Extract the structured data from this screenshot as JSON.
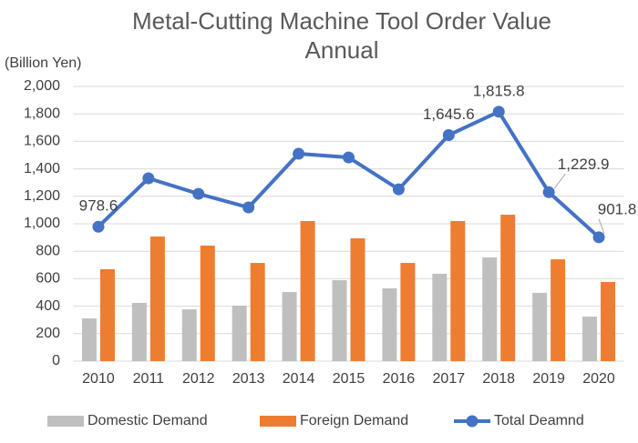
{
  "chart_data": {
    "type": "combo",
    "title": [
      "Metal-Cutting Machine Tool Order Value",
      "Annual"
    ],
    "y_label": "(Billion Yen)",
    "categories": [
      "2010",
      "2011",
      "2012",
      "2013",
      "2014",
      "2015",
      "2016",
      "2017",
      "2018",
      "2019",
      "2020"
    ],
    "series": [
      {
        "name": "Domestic Demand",
        "type": "bar",
        "color": "#bfbfbf",
        "values": [
          311,
          424,
          377,
          404,
          503,
          589,
          530,
          636,
          755,
          497,
          324
        ]
      },
      {
        "name": "Foreign Demand",
        "type": "bar",
        "color": "#ed7d31",
        "values": [
          669,
          907,
          841,
          715,
          1020,
          894,
          715,
          1020,
          1066,
          741,
          576
        ]
      },
      {
        "name": "Total Deamnd",
        "type": "line",
        "color": "#4472c4",
        "values": [
          978.6,
          1331,
          1218,
          1119,
          1510,
          1483,
          1251,
          1645.6,
          1815.8,
          1229.9,
          901.8
        ],
        "value_labels": [
          "978.6",
          null,
          null,
          null,
          null,
          null,
          null,
          "1,645.6",
          "1,815.8",
          "1,229.9",
          "901.8"
        ]
      }
    ],
    "ylim": [
      0,
      2000
    ],
    "yticks": [
      0,
      200,
      400,
      600,
      800,
      {
        "value": 1000,
        "label": "1,000"
      },
      {
        "value": 1200,
        "label": "1,200"
      },
      {
        "value": 1400,
        "label": "1,400"
      },
      {
        "value": 1600,
        "label": "1,600"
      },
      {
        "value": 1800,
        "label": "1,800"
      },
      {
        "value": 2000,
        "label": "2,000"
      }
    ],
    "grid": true,
    "legend": "bottom"
  }
}
